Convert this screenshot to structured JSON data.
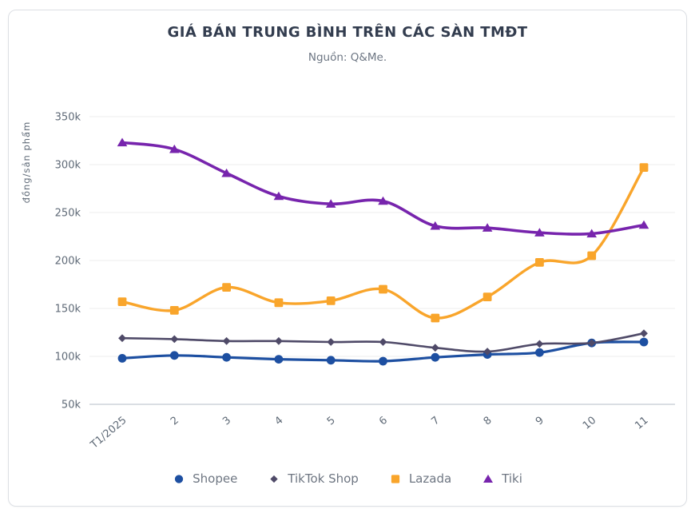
{
  "chart_data": {
    "type": "line",
    "title": "GIÁ BÁN TRUNG BÌNH TRÊN CÁC SÀN TMĐT",
    "subtitle": "Nguồn: Q&Me.",
    "categories": [
      "T1/2025",
      "2",
      "3",
      "4",
      "5",
      "6",
      "7",
      "8",
      "9",
      "10",
      "11"
    ],
    "y_axis": {
      "label": "đồng/sản phẩm",
      "ticks": [
        "350k",
        "300k",
        "250k",
        "200k",
        "150k",
        "100k",
        "50k"
      ],
      "min": 50000,
      "max": 350000,
      "step": 50000
    },
    "grid": true,
    "legend_position": "bottom",
    "series": [
      {
        "name": "Shopee",
        "color": "#1d4fa1",
        "marker": "circle",
        "values": [
          98000,
          101000,
          99000,
          97000,
          96000,
          95000,
          99000,
          102000,
          104000,
          114000,
          115000
        ]
      },
      {
        "name": "TikTok Shop",
        "color": "#4f4a68",
        "marker": "diamond",
        "values": [
          119000,
          118000,
          116000,
          116000,
          115000,
          115000,
          109000,
          105000,
          113000,
          114000,
          124000
        ]
      },
      {
        "name": "Lazada",
        "color": "#f9a52b",
        "marker": "square",
        "values": [
          157000,
          148000,
          172000,
          156000,
          158000,
          170000,
          140000,
          162000,
          198000,
          205000,
          297000
        ]
      },
      {
        "name": "Tiki",
        "color": "#7724ad",
        "marker": "triangle",
        "values": [
          323000,
          316000,
          291000,
          267000,
          259000,
          262000,
          236000,
          234000,
          229000,
          228000,
          237000
        ]
      }
    ]
  }
}
